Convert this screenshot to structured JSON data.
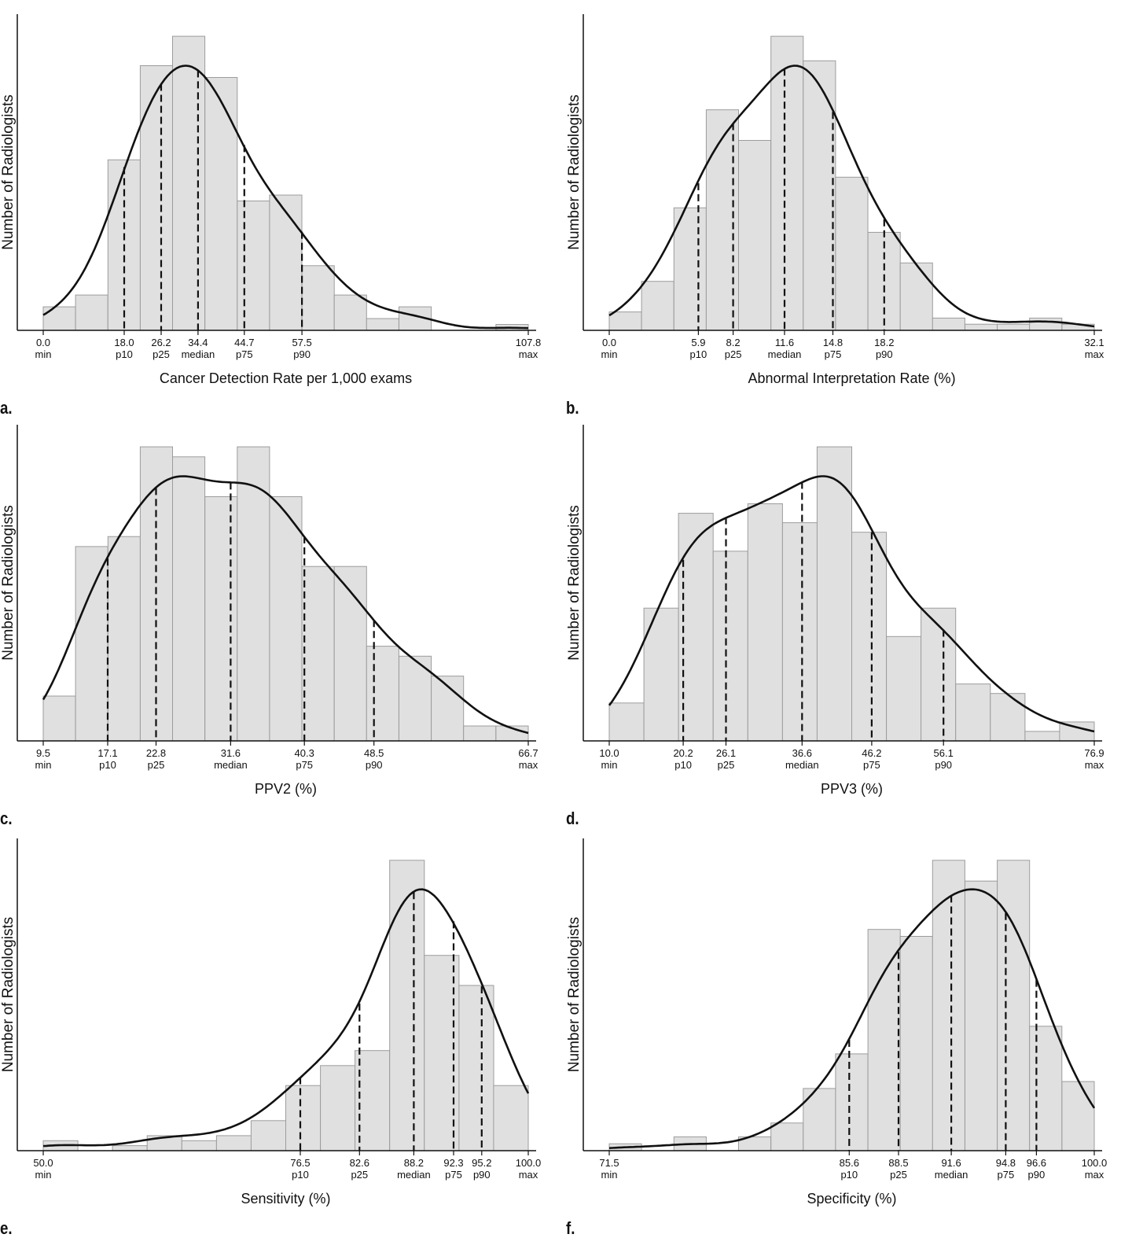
{
  "chart_data": [
    {
      "id": "a",
      "type": "bar",
      "panel_label": "a.",
      "title": "",
      "xlabel": "Cancer Detection Rate per 1,000 exams",
      "ylabel": "Number of Radiologists",
      "xlim": [
        0.0,
        107.8
      ],
      "bin_count": 15,
      "values": [
        4,
        6,
        29,
        45,
        50,
        43,
        22,
        23,
        11,
        6,
        2,
        4,
        0,
        0,
        1
      ],
      "density_curve": true,
      "markers": [
        {
          "value": 0.0,
          "value_label": "0.0",
          "name": "min",
          "dashed": false
        },
        {
          "value": 18.0,
          "value_label": "18.0",
          "name": "p10",
          "dashed": true
        },
        {
          "value": 26.2,
          "value_label": "26.2",
          "name": "p25",
          "dashed": true
        },
        {
          "value": 34.4,
          "value_label": "34.4",
          "name": "median",
          "dashed": true
        },
        {
          "value": 44.7,
          "value_label": "44.7",
          "name": "p75",
          "dashed": true
        },
        {
          "value": 57.5,
          "value_label": "57.5",
          "name": "p90",
          "dashed": true
        },
        {
          "value": 107.8,
          "value_label": "107.8",
          "name": "max",
          "dashed": false
        }
      ]
    },
    {
      "id": "b",
      "type": "bar",
      "panel_label": "b.",
      "title": "",
      "xlabel": "Abnormal Interpretation Rate (%)",
      "ylabel": "Number of Radiologists",
      "xlim": [
        0.0,
        32.1
      ],
      "bin_count": 15,
      "values": [
        3,
        8,
        20,
        36,
        31,
        48,
        44,
        25,
        16,
        11,
        2,
        1,
        1,
        2,
        1
      ],
      "density_curve": true,
      "markers": [
        {
          "value": 0.0,
          "value_label": "0.0",
          "name": "min",
          "dashed": false
        },
        {
          "value": 5.9,
          "value_label": "5.9",
          "name": "p10",
          "dashed": true
        },
        {
          "value": 8.2,
          "value_label": "8.2",
          "name": "p25",
          "dashed": true
        },
        {
          "value": 11.6,
          "value_label": "11.6",
          "name": "median",
          "dashed": true
        },
        {
          "value": 14.8,
          "value_label": "14.8",
          "name": "p75",
          "dashed": true
        },
        {
          "value": 18.2,
          "value_label": "18.2",
          "name": "p90",
          "dashed": true
        },
        {
          "value": 32.1,
          "value_label": "32.1",
          "name": "max",
          "dashed": false
        }
      ]
    },
    {
      "id": "c",
      "type": "bar",
      "panel_label": "c.",
      "title": "",
      "xlabel": "PPV2 (%)",
      "ylabel": "Number of Radiologists",
      "xlim": [
        9.5,
        66.7
      ],
      "bin_count": 15,
      "values": [
        9,
        39,
        41,
        59,
        57,
        49,
        59,
        49,
        35,
        35,
        19,
        17,
        13,
        3,
        3
      ],
      "density_curve": true,
      "markers": [
        {
          "value": 9.5,
          "value_label": "9.5",
          "name": "min",
          "dashed": false
        },
        {
          "value": 17.1,
          "value_label": "17.1",
          "name": "p10",
          "dashed": true
        },
        {
          "value": 22.8,
          "value_label": "22.8",
          "name": "p25",
          "dashed": true
        },
        {
          "value": 31.6,
          "value_label": "31.6",
          "name": "median",
          "dashed": true
        },
        {
          "value": 40.3,
          "value_label": "40.3",
          "name": "p75",
          "dashed": true
        },
        {
          "value": 48.5,
          "value_label": "48.5",
          "name": "p90",
          "dashed": true
        },
        {
          "value": 66.7,
          "value_label": "66.7",
          "name": "max",
          "dashed": false
        }
      ]
    },
    {
      "id": "d",
      "type": "bar",
      "panel_label": "d.",
      "title": "",
      "xlabel": "PPV3 (%)",
      "ylabel": "Number of Radiologists",
      "xlim": [
        10.0,
        76.9
      ],
      "bin_count": 14,
      "values": [
        4,
        14,
        24,
        20,
        25,
        23,
        31,
        22,
        11,
        14,
        6,
        5,
        1,
        2
      ],
      "density_curve": true,
      "markers": [
        {
          "value": 10.0,
          "value_label": "10.0",
          "name": "min",
          "dashed": false
        },
        {
          "value": 20.2,
          "value_label": "20.2",
          "name": "p10",
          "dashed": true
        },
        {
          "value": 26.1,
          "value_label": "26.1",
          "name": "p25",
          "dashed": true
        },
        {
          "value": 36.6,
          "value_label": "36.6",
          "name": "median",
          "dashed": true
        },
        {
          "value": 46.2,
          "value_label": "46.2",
          "name": "p75",
          "dashed": true
        },
        {
          "value": 56.1,
          "value_label": "56.1",
          "name": "p90",
          "dashed": true
        },
        {
          "value": 76.9,
          "value_label": "76.9",
          "name": "max",
          "dashed": false
        }
      ]
    },
    {
      "id": "e",
      "type": "bar",
      "panel_label": "e.",
      "title": "",
      "xlabel": "Sensitivity (%)",
      "ylabel": "Number of Radiologists",
      "xlim": [
        50.0,
        100.0
      ],
      "bin_count": 14,
      "values": [
        2,
        0,
        1,
        3,
        2,
        3,
        6,
        13,
        17,
        20,
        58,
        39,
        33,
        13
      ],
      "density_curve": true,
      "markers": [
        {
          "value": 50.0,
          "value_label": "50.0",
          "name": "min",
          "dashed": false
        },
        {
          "value": 76.5,
          "value_label": "76.5",
          "name": "p10",
          "dashed": true
        },
        {
          "value": 82.6,
          "value_label": "82.6",
          "name": "p25",
          "dashed": true
        },
        {
          "value": 88.2,
          "value_label": "88.2",
          "name": "median",
          "dashed": true
        },
        {
          "value": 92.3,
          "value_label": "92.3",
          "name": "p75",
          "dashed": true
        },
        {
          "value": 95.2,
          "value_label": "95.2",
          "name": "p90",
          "dashed": true
        },
        {
          "value": 100.0,
          "value_label": "100.0",
          "name": "max",
          "dashed": false
        }
      ]
    },
    {
      "id": "f",
      "type": "bar",
      "panel_label": "f.",
      "title": "",
      "xlabel": "Specificity (%)",
      "ylabel": "Number of Radiologists",
      "xlim": [
        71.5,
        100.0
      ],
      "bin_count": 15,
      "values": [
        1,
        0,
        2,
        0,
        2,
        4,
        9,
        14,
        32,
        31,
        42,
        39,
        42,
        18,
        10
      ],
      "density_curve": true,
      "markers": [
        {
          "value": 71.5,
          "value_label": "71.5",
          "name": "min",
          "dashed": false
        },
        {
          "value": 85.6,
          "value_label": "85.6",
          "name": "p10",
          "dashed": true
        },
        {
          "value": 88.5,
          "value_label": "88.5",
          "name": "p25",
          "dashed": true
        },
        {
          "value": 91.6,
          "value_label": "91.6",
          "name": "median",
          "dashed": true
        },
        {
          "value": 94.8,
          "value_label": "94.8",
          "name": "p75",
          "dashed": true
        },
        {
          "value": 96.6,
          "value_label": "96.6",
          "name": "p90",
          "dashed": true
        },
        {
          "value": 100.0,
          "value_label": "100.0",
          "name": "max",
          "dashed": false
        }
      ]
    }
  ]
}
